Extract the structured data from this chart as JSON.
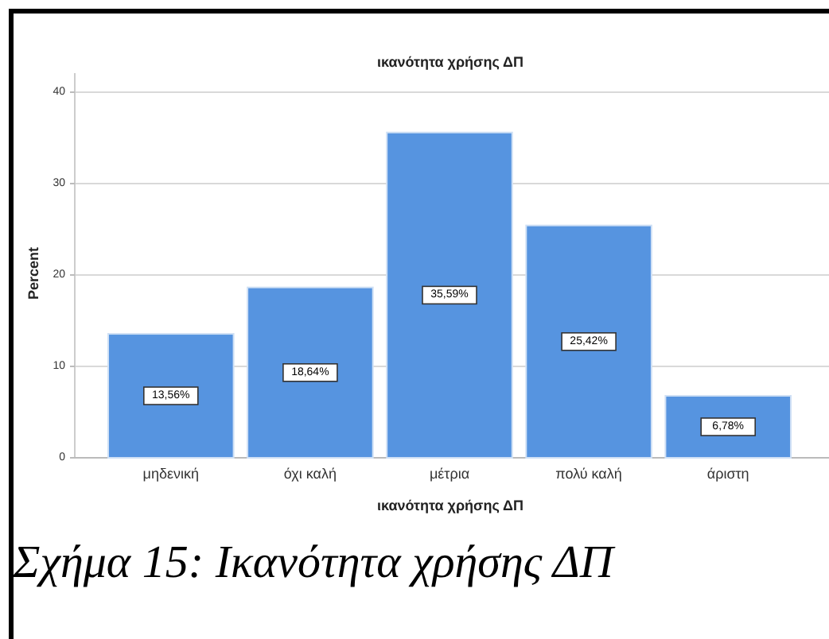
{
  "chart_data": {
    "type": "bar",
    "title": "ικανότητα χρήσης ΔΠ",
    "xlabel": "ικανότητα χρήσης ΔΠ",
    "ylabel": "Percent",
    "categories": [
      "μηδενική",
      "όχι καλή",
      "μέτρια",
      "πολύ καλή",
      "άριστη"
    ],
    "values": [
      13.56,
      18.64,
      35.59,
      25.42,
      6.78
    ],
    "value_labels": [
      "13,56%",
      "18,64%",
      "35,59%",
      "25,42%",
      "6,78%"
    ],
    "color": "#5694e0",
    "ylim": [
      0,
      40
    ],
    "yticks": [
      0,
      10,
      20,
      30,
      40
    ],
    "grid": "y",
    "annotations": [
      "Σχήμα 15: Ικανότητα χρήσης ΔΠ"
    ]
  }
}
